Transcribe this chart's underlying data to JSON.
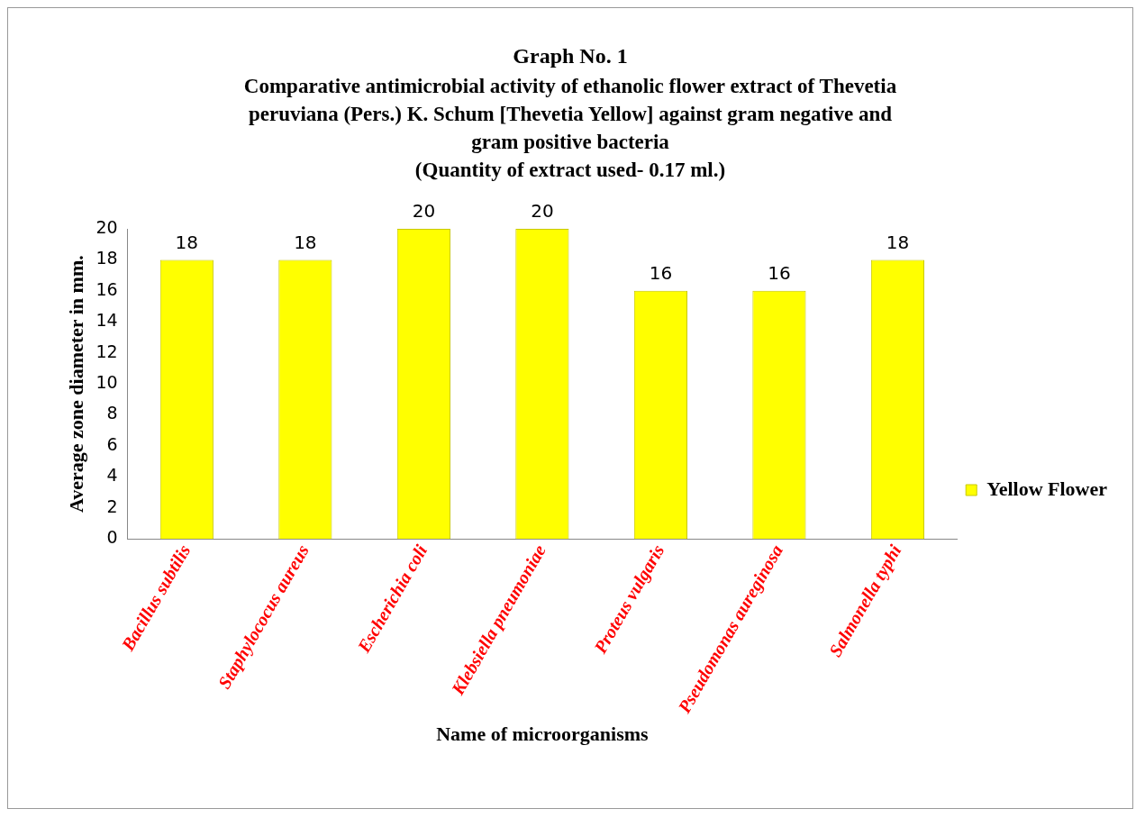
{
  "chart_data": {
    "type": "bar",
    "title": "Graph No. 1",
    "subtitle": "Comparative antimicrobial activity of ethanolic flower extract of Thevetia peruviana (Pers.) K. Schum [Thevetia Yellow] against gram negative and gram positive bacteria\n(Quantity of extract used- 0.17 ml.)",
    "xlabel": "Name of microorganisms",
    "ylabel": "Average zone diameter in mm.",
    "categories": [
      "Bacillus subtilis",
      "Staphylococus aureus",
      "Escherichia coli",
      "Klebsiella pneumoniae",
      "Proteus vulgaris",
      "Pseudomonas aureginosa",
      "Salmonella typhi"
    ],
    "series": [
      {
        "name": "Yellow Flower",
        "color": "#ffff00",
        "values": [
          18,
          18,
          20,
          20,
          16,
          16,
          18
        ]
      }
    ],
    "ylim": [
      0,
      20
    ],
    "yticks": [
      0,
      2,
      4,
      6,
      8,
      10,
      12,
      14,
      16,
      18,
      20
    ],
    "grid": false,
    "legend": "right",
    "data_labels": true
  }
}
